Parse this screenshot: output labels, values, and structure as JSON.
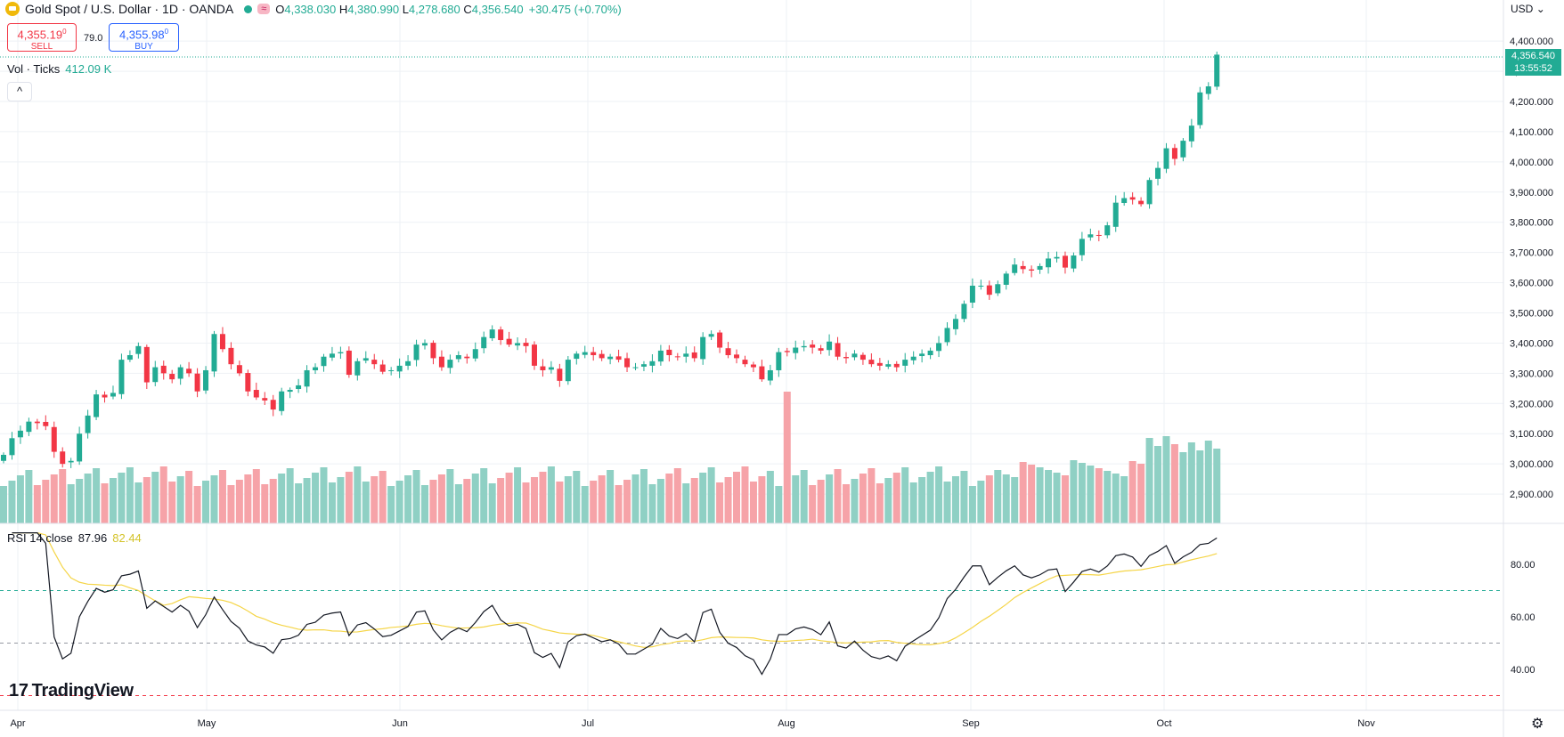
{
  "header": {
    "symbol_title": "Gold Spot / U.S. Dollar · 1D · OANDA",
    "approx_badge": "≈",
    "open_label": "O",
    "open": "4,338.030",
    "high_label": "H",
    "high": "4,380.990",
    "low_label": "L",
    "low": "4,278.680",
    "close_label": "C",
    "close": "4,356.540",
    "change": "+30.475 (+0.70%)"
  },
  "trade": {
    "sell_price": "4,355.19",
    "sell_price_sup": "0",
    "sell_label": "SELL",
    "spread": "79.0",
    "buy_price": "4,355.98",
    "buy_price_sup": "0",
    "buy_label": "BUY"
  },
  "volume": {
    "label": "Vol · Ticks",
    "value": "412.09 K"
  },
  "collapse_icon": "^",
  "rsi": {
    "label": "RSI 14 close",
    "value": "87.96",
    "ma_value": "82.44"
  },
  "brand": "TradingView",
  "brand_mark": "17",
  "currency": "USD",
  "current_price": "4,356.540",
  "countdown": "13:55:52",
  "settings_icon": "⚙",
  "colors": {
    "up": "#22ab94",
    "down": "#f23645",
    "vol_up": "#8fd0c4",
    "vol_down": "#f6a3a8",
    "rsi_line": "#131722",
    "rsi_ma": "#f5d547"
  },
  "chart_data": {
    "type": "candlestick",
    "price_axis": {
      "ticks": [
        2900,
        3000,
        3100,
        3200,
        3300,
        3400,
        3500,
        3600,
        3700,
        3800,
        3900,
        4000,
        4100,
        4200,
        4300,
        4400
      ],
      "labels": [
        "2,900.000",
        "3,000.000",
        "3,100.000",
        "3,200.000",
        "3,300.000",
        "3,400.000",
        "3,500.000",
        "3,600.000",
        "3,700.000",
        "3,800.000",
        "3,900.000",
        "4,000.000",
        "4,100.000",
        "4,200.000",
        "4,300.000",
        "4,400.000"
      ]
    },
    "time_axis": [
      "Apr",
      "May",
      "Jun",
      "Jul",
      "Aug",
      "Sep",
      "Oct",
      "Nov"
    ],
    "closes": [
      3030,
      3085,
      3110,
      3140,
      3135,
      3125,
      3040,
      3000,
      3010,
      3100,
      3160,
      3230,
      3220,
      3235,
      3345,
      3360,
      3390,
      3270,
      3320,
      3300,
      3280,
      3320,
      3300,
      3240,
      3310,
      3430,
      3380,
      3330,
      3300,
      3240,
      3220,
      3210,
      3180,
      3240,
      3245,
      3260,
      3310,
      3320,
      3355,
      3365,
      3370,
      3295,
      3340,
      3350,
      3330,
      3305,
      3310,
      3325,
      3340,
      3395,
      3400,
      3350,
      3320,
      3345,
      3360,
      3350,
      3380,
      3420,
      3445,
      3410,
      3395,
      3400,
      3390,
      3325,
      3310,
      3320,
      3275,
      3345,
      3365,
      3370,
      3360,
      3350,
      3355,
      3345,
      3320,
      3320,
      3330,
      3340,
      3375,
      3360,
      3355,
      3365,
      3350,
      3420,
      3430,
      3385,
      3360,
      3350,
      3330,
      3320,
      3280,
      3310,
      3370,
      3370,
      3385,
      3390,
      3385,
      3375,
      3405,
      3355,
      3350,
      3365,
      3345,
      3330,
      3325,
      3330,
      3320,
      3345,
      3355,
      3365,
      3375,
      3400,
      3450,
      3480,
      3530,
      3590,
      3590,
      3560,
      3595,
      3630,
      3660,
      3645,
      3640,
      3655,
      3680,
      3685,
      3650,
      3690,
      3745,
      3760,
      3755,
      3790,
      3865,
      3880,
      3875,
      3860,
      3940,
      3980,
      4045,
      4010,
      4070,
      4120,
      4230,
      4250,
      4355
    ]
  }
}
